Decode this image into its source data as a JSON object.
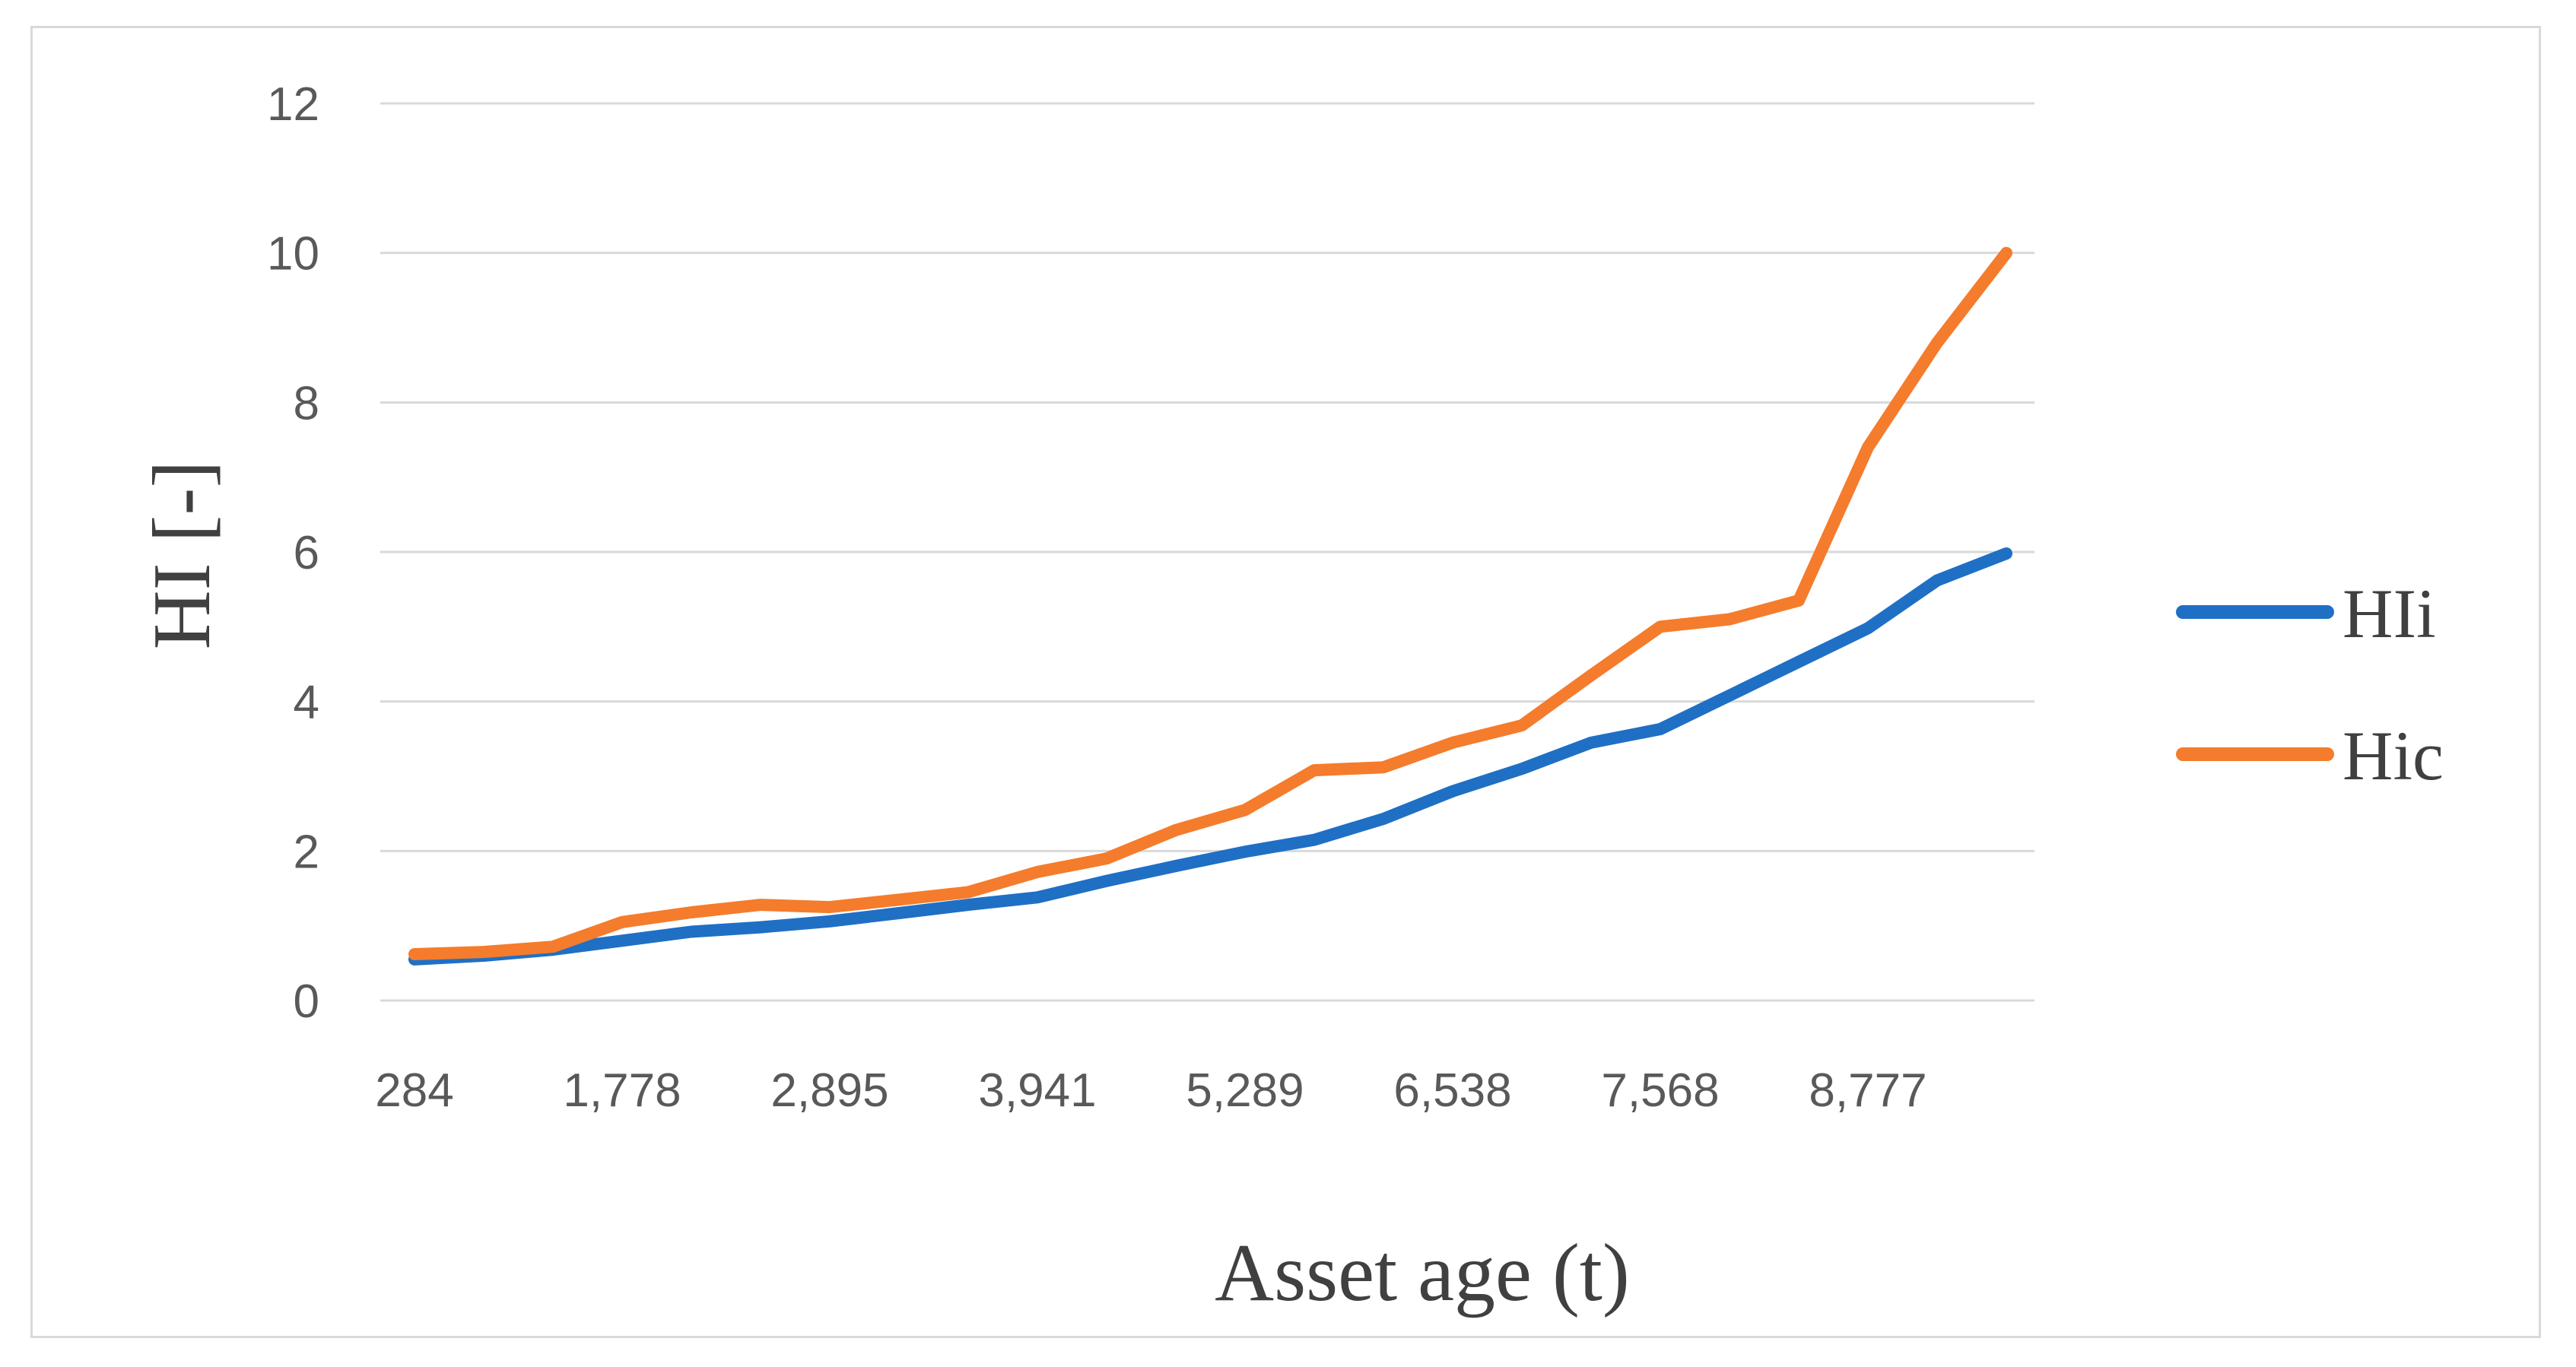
{
  "chart_data": {
    "type": "line",
    "xlabel": "Asset age (t)",
    "ylabel": "HI [-]",
    "ylim": [
      0,
      12
    ],
    "yticks": [
      "0",
      "2",
      "4",
      "6",
      "8",
      "10",
      "12"
    ],
    "x_tick_labels": [
      {
        "index": 0,
        "label": "284"
      },
      {
        "index": 3,
        "label": "1,778"
      },
      {
        "index": 6,
        "label": "2,895"
      },
      {
        "index": 9,
        "label": "3,941"
      },
      {
        "index": 12,
        "label": "5,289"
      },
      {
        "index": 15,
        "label": "6,538"
      },
      {
        "index": 18,
        "label": "7,568"
      },
      {
        "index": 21,
        "label": "8,777"
      }
    ],
    "point_count": 24,
    "grid": "horizontal",
    "legend_position": "right",
    "series": [
      {
        "name": "HIi",
        "color": "#1f6fc5",
        "values": [
          0.55,
          0.6,
          0.68,
          0.8,
          0.92,
          0.98,
          1.06,
          1.17,
          1.28,
          1.38,
          1.6,
          1.8,
          1.99,
          2.15,
          2.43,
          2.8,
          3.1,
          3.45,
          3.63,
          4.08,
          4.53,
          4.98,
          5.62,
          5.98
        ]
      },
      {
        "name": "Hic",
        "color": "#f47c2c",
        "values": [
          0.62,
          0.65,
          0.72,
          1.05,
          1.18,
          1.28,
          1.25,
          1.35,
          1.45,
          1.72,
          1.9,
          2.28,
          2.55,
          3.08,
          3.12,
          3.45,
          3.68,
          4.35,
          5.0,
          5.1,
          5.35,
          7.4,
          8.8,
          10.0
        ]
      }
    ]
  }
}
